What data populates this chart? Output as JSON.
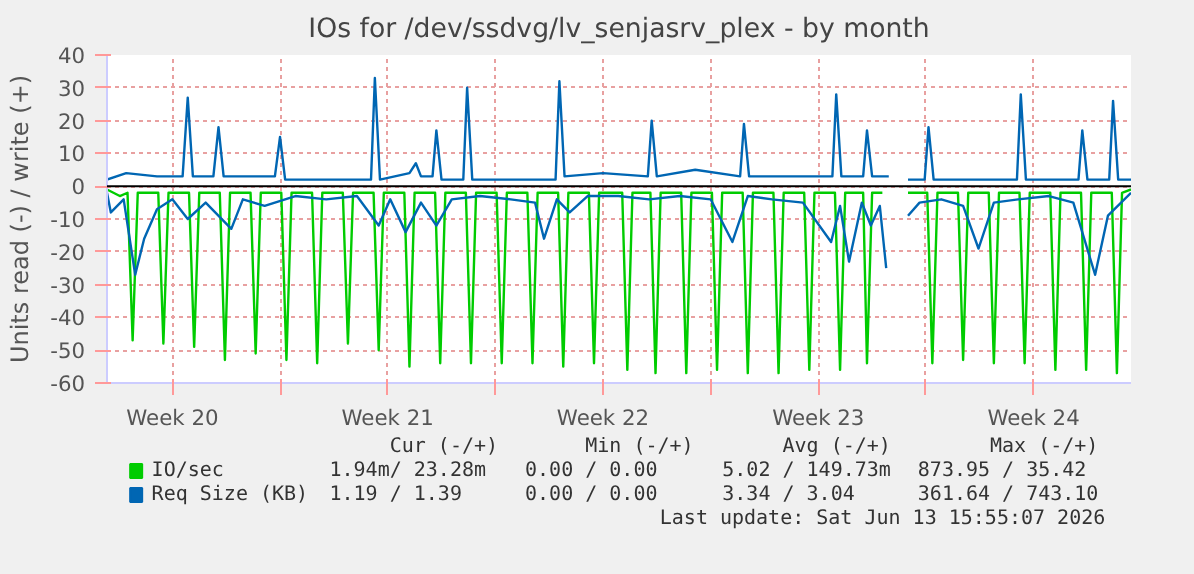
{
  "chart_data": {
    "type": "line",
    "title": "IOs for /dev/ssdvg/lv_senjasrv_plex - by month",
    "ylabel": "Units read (-) / write (+)",
    "xlim": [
      "2026-05-11T09:00",
      "2026-06-13T16:00"
    ],
    "ylim": [
      -60,
      40
    ],
    "xticks": [
      {
        "value": "2026-05-13T12:00",
        "label": "Week 20"
      },
      {
        "value": "2026-05-17",
        "label": null
      },
      {
        "value": "2026-05-20T12:00",
        "label": "Week 21"
      },
      {
        "value": "2026-05-24",
        "label": null
      },
      {
        "value": "2026-05-27T12:00",
        "label": "Week 22"
      },
      {
        "value": "2026-05-31",
        "label": null
      },
      {
        "value": "2026-06-03T12:00",
        "label": "Week 23"
      },
      {
        "value": "2026-06-07",
        "label": null
      },
      {
        "value": "2026-06-10T12:00",
        "label": "Week 24"
      }
    ],
    "yticks": [
      -60,
      -50,
      -40,
      -30,
      -20,
      -10,
      0,
      10,
      20,
      30,
      40
    ],
    "grid": true,
    "legend": "bottom",
    "line_style": "solid",
    "ref_lines": [
      {
        "axis": "y",
        "value": 0,
        "color": "#000000"
      }
    ],
    "series": [
      {
        "name": "IO/sec",
        "color": "#00cc00",
        "x": [
          "2026-05-11T09:00",
          "2026-05-11T19:00",
          "2026-05-12T01:00",
          "2026-05-12T05:00",
          "2026-05-12T09:00",
          "2026-05-13T01:00",
          "2026-05-13T05:00",
          "2026-05-13T09:00",
          "2026-05-14T01:00",
          "2026-05-14T05:00",
          "2026-05-14T09:00",
          "2026-05-15T01:00",
          "2026-05-15T05:00",
          "2026-05-15T09:00",
          "2026-05-16T01:00",
          "2026-05-16T05:00",
          "2026-05-16T09:00",
          "2026-05-17T01:00",
          "2026-05-17T05:00",
          "2026-05-17T09:00",
          "2026-05-18T01:00",
          "2026-05-18T05:00",
          "2026-05-18T09:00",
          "2026-05-19T01:00",
          "2026-05-19T05:00",
          "2026-05-19T09:00",
          "2026-05-20T01:00",
          "2026-05-20T05:00",
          "2026-05-20T09:00",
          "2026-05-21T01:00",
          "2026-05-21T05:00",
          "2026-05-21T09:00",
          "2026-05-22T01:00",
          "2026-05-22T05:00",
          "2026-05-22T09:00",
          "2026-05-23T01:00",
          "2026-05-23T05:00",
          "2026-05-23T09:00",
          "2026-05-24T01:00",
          "2026-05-24T05:00",
          "2026-05-24T09:00",
          "2026-05-25T01:00",
          "2026-05-25T05:00",
          "2026-05-25T09:00",
          "2026-05-26T01:00",
          "2026-05-26T05:00",
          "2026-05-26T09:00",
          "2026-05-27T01:00",
          "2026-05-27T05:00",
          "2026-05-27T09:00",
          "2026-05-28T03:00",
          "2026-05-28T07:00",
          "2026-05-28T11:00",
          "2026-05-29T01:00",
          "2026-05-29T05:00",
          "2026-05-29T09:00",
          "2026-05-30T01:00",
          "2026-05-30T05:00",
          "2026-05-30T09:00",
          "2026-05-31T01:00",
          "2026-05-31T05:00",
          "2026-05-31T09:00",
          "2026-06-01T01:00",
          "2026-06-01T05:00",
          "2026-06-01T09:00",
          "2026-06-02T01:00",
          "2026-06-02T05:00",
          "2026-06-02T09:00",
          "2026-06-03T01:00",
          "2026-06-03T05:00",
          "2026-06-03T09:00",
          "2026-06-04T01:00",
          "2026-06-04T05:00",
          "2026-06-04T09:00",
          "2026-06-04T23:00",
          "2026-06-05T02:00",
          "2026-06-05T06:00",
          "2026-06-05T14:00",
          "2026-06-06T00:00",
          "2026-06-06T10:00",
          "2026-06-07T01:00",
          "2026-06-07T05:00",
          "2026-06-07T09:00",
          "2026-06-08T01:00",
          "2026-06-08T05:00",
          "2026-06-08T09:00",
          "2026-06-09T01:00",
          "2026-06-09T05:00",
          "2026-06-09T09:00",
          "2026-06-10T01:00",
          "2026-06-10T05:00",
          "2026-06-10T09:00",
          "2026-06-11T01:00",
          "2026-06-11T05:00",
          "2026-06-11T09:00",
          "2026-06-12T01:00",
          "2026-06-12T05:00",
          "2026-06-12T09:00",
          "2026-06-13T01:00",
          "2026-06-13T05:00",
          "2026-06-13T09:00",
          "2026-06-13T16:00"
        ],
        "values": [
          -1,
          -3,
          -2,
          -47,
          -2,
          -2,
          -48,
          -2,
          -2,
          -49,
          -2,
          -2,
          -53,
          -2,
          -2,
          -51,
          -2,
          -2,
          -53,
          -2,
          -2,
          -54,
          -2,
          -2,
          -48,
          -2,
          -2,
          -50,
          -2,
          -2,
          -55,
          -2,
          -2,
          -54,
          -2,
          -2,
          -54,
          -2,
          -2,
          -54,
          -2,
          -2,
          -54,
          -2,
          -2,
          -55,
          -2,
          -2,
          -54,
          -2,
          -2,
          -56,
          -2,
          -2,
          -57,
          -2,
          -2,
          -57,
          -2,
          -2,
          -56,
          -2,
          -2,
          -57,
          -2,
          -2,
          -57,
          -2,
          -2,
          -56,
          -2,
          -2,
          -56,
          -2,
          -2,
          -54,
          -2,
          -2,
          null,
          -2,
          -2,
          -54,
          -2,
          -2,
          -53,
          -2,
          -2,
          -54,
          -2,
          -2,
          -54,
          -2,
          -2,
          -56,
          -2,
          -2,
          -56,
          -2,
          -2,
          -57,
          -2,
          -1
        ]
      },
      {
        "name": "Req Size (KB)",
        "color": "#0066b3",
        "x": [
          "2026-05-11T09:00",
          "2026-05-12T00:00",
          "2026-05-13T00:00",
          "2026-05-13T20:00",
          "2026-05-14T00:00",
          "2026-05-14T04:00",
          "2026-05-14T20:00",
          "2026-05-15T00:00",
          "2026-05-15T04:00",
          "2026-05-16T20:00",
          "2026-05-17T00:00",
          "2026-05-17T04:00",
          "2026-05-18T12:00",
          "2026-05-19T23:00",
          "2026-05-20T02:00",
          "2026-05-20T06:00",
          "2026-05-21T05:00",
          "2026-05-21T10:00",
          "2026-05-21T14:00",
          "2026-05-21T23:00",
          "2026-05-22T02:00",
          "2026-05-22T06:00",
          "2026-05-22T23:00",
          "2026-05-23T02:00",
          "2026-05-23T06:00",
          "2026-05-25T23:00",
          "2026-05-26T02:00",
          "2026-05-26T06:00",
          "2026-05-27T12:00",
          "2026-05-28T23:00",
          "2026-05-29T02:00",
          "2026-05-29T06:00",
          "2026-05-30T12:00",
          "2026-05-31T23:00",
          "2026-06-01T02:00",
          "2026-06-01T06:00",
          "2026-06-02T12:00",
          "2026-06-03T23:00",
          "2026-06-04T02:00",
          "2026-06-04T06:00",
          "2026-06-04T23:00",
          "2026-06-05T02:00",
          "2026-06-05T06:00",
          "2026-06-05T19:00",
          "2026-06-06T00:00",
          "2026-06-06T10:00",
          "2026-06-06T23:00",
          "2026-06-07T02:00",
          "2026-06-07T06:00",
          "2026-06-08T12:00",
          "2026-06-09T23:00",
          "2026-06-10T02:00",
          "2026-06-10T06:00",
          "2026-06-11T23:00",
          "2026-06-12T02:00",
          "2026-06-12T06:00",
          "2026-06-12T23:00",
          "2026-06-13T02:00",
          "2026-06-13T06:00",
          "2026-06-13T16:00"
        ],
        "values": [
          2,
          4,
          3,
          3,
          27,
          3,
          3,
          18,
          3,
          3,
          15,
          2,
          2,
          2,
          33,
          2,
          4,
          7,
          3,
          3,
          17,
          2,
          2,
          30,
          2,
          2,
          32,
          3,
          4,
          3,
          20,
          3,
          5,
          3,
          19,
          3,
          3,
          3,
          28,
          3,
          3,
          17,
          3,
          3,
          null,
          2,
          2,
          18,
          2,
          2,
          2,
          28,
          2,
          2,
          17,
          2,
          2,
          26,
          2,
          2
        ]
      },
      {
        "color": "#0066b3",
        "x": [
          "2026-05-11T09:00",
          "2026-05-11T12:00",
          "2026-05-11T22:00",
          "2026-05-12T07:00",
          "2026-05-12T14:00",
          "2026-05-13T00:00",
          "2026-05-13T12:00",
          "2026-05-14T00:00",
          "2026-05-14T14:00",
          "2026-05-15T10:00",
          "2026-05-15T19:00",
          "2026-05-16T12:00",
          "2026-05-17T12:00",
          "2026-05-18T12:00",
          "2026-05-19T12:00",
          "2026-05-20T05:00",
          "2026-05-20T14:00",
          "2026-05-21T02:00",
          "2026-05-21T14:00",
          "2026-05-22T02:00",
          "2026-05-22T14:00",
          "2026-05-23T12:00",
          "2026-05-24T12:00",
          "2026-05-25T07:00",
          "2026-05-25T14:00",
          "2026-05-26T00:00",
          "2026-05-26T10:00",
          "2026-05-27T00:00",
          "2026-05-28T00:00",
          "2026-05-29T00:00",
          "2026-05-30T00:00",
          "2026-05-31T00:00",
          "2026-05-31T17:00",
          "2026-06-01T05:00",
          "2026-06-02T00:00",
          "2026-06-03T00:00",
          "2026-06-03T22:00",
          "2026-06-04T05:00",
          "2026-06-04T12:00",
          "2026-06-04T22:00",
          "2026-06-05T05:00",
          "2026-06-05T12:00",
          "2026-06-05T17:00",
          "2026-06-06T00:00",
          "2026-06-06T10:00",
          "2026-06-06T19:00",
          "2026-06-07T12:00",
          "2026-06-08T05:00",
          "2026-06-08T17:00",
          "2026-06-09T05:00",
          "2026-06-10T00:00",
          "2026-06-11T00:00",
          "2026-06-11T19:00",
          "2026-06-12T12:00",
          "2026-06-12T22:00",
          "2026-06-13T16:00"
        ],
        "values": [
          -2,
          -8,
          -4,
          -27,
          -16,
          -7,
          -4,
          -10,
          -5,
          -13,
          -4,
          -6,
          -3,
          -4,
          -3,
          -12,
          -4,
          -14,
          -5,
          -12,
          -4,
          -3,
          -4,
          -5,
          -16,
          -4,
          -8,
          -3,
          -3,
          -4,
          -3,
          -4,
          -17,
          -3,
          -4,
          -5,
          -17,
          -6,
          -23,
          -5,
          -12,
          -6,
          -25,
          null,
          -9,
          -5,
          -4,
          -6,
          -19,
          -5,
          -4,
          -3,
          -5,
          -27,
          -9,
          -2
        ]
      }
    ],
    "annotations": [
      "Cur (-/+)",
      "Min (-/+)",
      "Avg (-/+)",
      "Max (-/+)",
      "1.94m/  23.28m",
      "0.00 /    0.00",
      "5.02 / 149.73m",
      "873.95 /  35.42",
      "1.19 /    1.39",
      "0.00 /    0.00",
      "3.34 /    3.04",
      "361.64 / 743.10",
      "Last update: Sat Jun 13 15:55:07 2026"
    ]
  }
}
